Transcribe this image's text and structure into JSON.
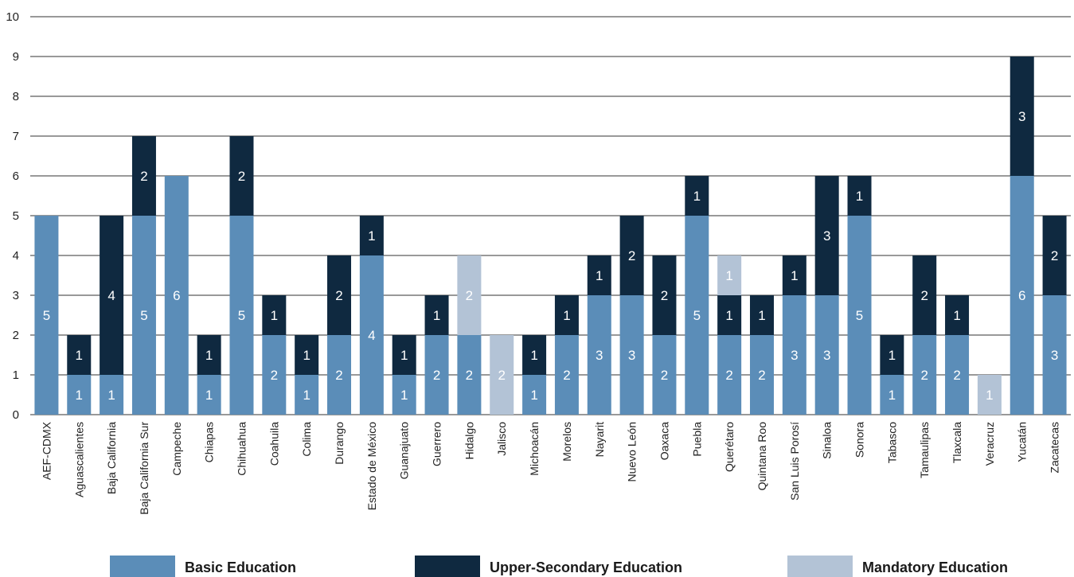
{
  "chart_data": {
    "type": "bar",
    "stacked": true,
    "categories": [
      "AEF-CDMX",
      "Aguascalientes",
      "Baja California",
      "Baja California Sur",
      "Campeche",
      "Chiapas",
      "Chihuahua",
      "Coahuila",
      "Colima",
      "Durango",
      "Estado de México",
      "Guanajuato",
      "Guerrero",
      "Hidalgo",
      "Jalisco",
      "Michoacán",
      "Morelos",
      "Nayarit",
      "Nuevo León",
      "Oaxaca",
      "Puebla",
      "Querétaro",
      "Quintana Roo",
      "San Luis Porosí",
      "Sinaloa",
      "Sonora",
      "Tabasco",
      "Tamaulipas",
      "Tlaxcala",
      "Veracruz",
      "Yucatán",
      "Zacatecas"
    ],
    "series": [
      {
        "name": "Basic Education",
        "color": "#5b8db8",
        "values": [
          5,
          1,
          1,
          5,
          6,
          1,
          5,
          2,
          1,
          2,
          4,
          1,
          2,
          2,
          0,
          1,
          2,
          3,
          3,
          2,
          5,
          2,
          2,
          3,
          3,
          5,
          1,
          2,
          2,
          0,
          6,
          3
        ]
      },
      {
        "name": "Upper-Secondary Education",
        "color": "#0f2940",
        "values": [
          0,
          1,
          4,
          2,
          0,
          1,
          2,
          1,
          1,
          2,
          1,
          1,
          1,
          0,
          0,
          1,
          1,
          1,
          2,
          2,
          1,
          1,
          1,
          1,
          3,
          1,
          1,
          2,
          1,
          0,
          3,
          2
        ]
      },
      {
        "name": "Mandatory Education",
        "color": "#b3c3d6",
        "values": [
          0,
          0,
          0,
          0,
          0,
          0,
          0,
          0,
          0,
          0,
          0,
          0,
          0,
          2,
          2,
          0,
          0,
          0,
          0,
          0,
          0,
          1,
          0,
          0,
          0,
          0,
          0,
          0,
          0,
          1,
          0,
          0
        ]
      }
    ],
    "ylim": [
      0,
      10
    ],
    "yticks": [
      "0",
      "1",
      "2",
      "3",
      "4",
      "5",
      "6",
      "7",
      "8",
      "9",
      "10"
    ],
    "grid": true,
    "legend_position": "bottom"
  }
}
